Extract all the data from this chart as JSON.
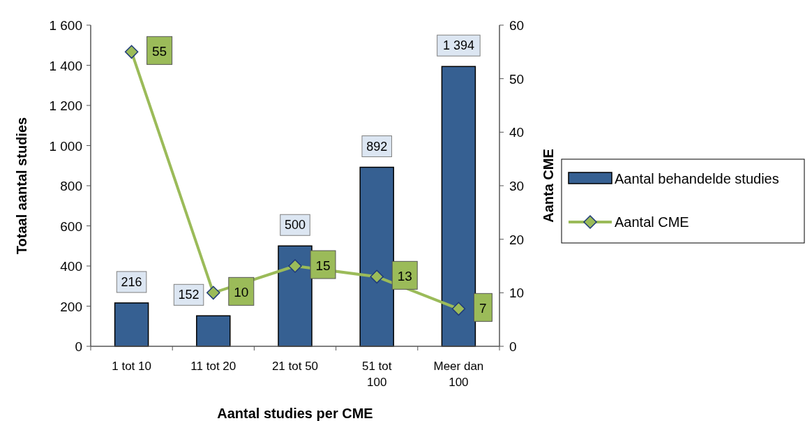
{
  "chart_data": {
    "type": "bar",
    "xlabel": "Aantal studies per CME",
    "ylabel": "Totaal aantal studies",
    "y2label": "Aanta CME",
    "categories": [
      "1 tot 10",
      "11 tot 20",
      "21 tot 50",
      "51 tot 100",
      "Meer dan 100"
    ],
    "series": [
      {
        "name": "Aantal behandelde studies",
        "color": "#366092",
        "values": [
          216,
          152,
          500,
          892,
          1394
        ],
        "value_labels": [
          "216",
          "152",
          "500",
          "892",
          "1 394"
        ]
      },
      {
        "name": "Aantal CME",
        "type": "line",
        "axis": "y2",
        "color": "#9bbb59",
        "marker": "diamond",
        "values": [
          55,
          10,
          15,
          13,
          7
        ],
        "value_labels": [
          "55",
          "10",
          "15",
          "13",
          "7"
        ]
      }
    ],
    "ylim": [
      0,
      1600
    ],
    "yticks": [
      0,
      {
        "value": 200,
        "label": "200"
      },
      {
        "value": 400,
        "label": "400"
      },
      {
        "value": 600,
        "label": "600"
      },
      {
        "value": 800,
        "label": "800"
      },
      {
        "value": 1000,
        "label": "1 000"
      },
      {
        "value": 1200,
        "label": "1 200"
      },
      {
        "value": 1400,
        "label": "1 400"
      },
      {
        "value": 1600,
        "label": "1 600"
      }
    ],
    "y2lim": [
      0,
      60
    ],
    "y2ticks": [
      0,
      10,
      20,
      30,
      40,
      50,
      60
    ],
    "grid": false,
    "legend": "right"
  }
}
